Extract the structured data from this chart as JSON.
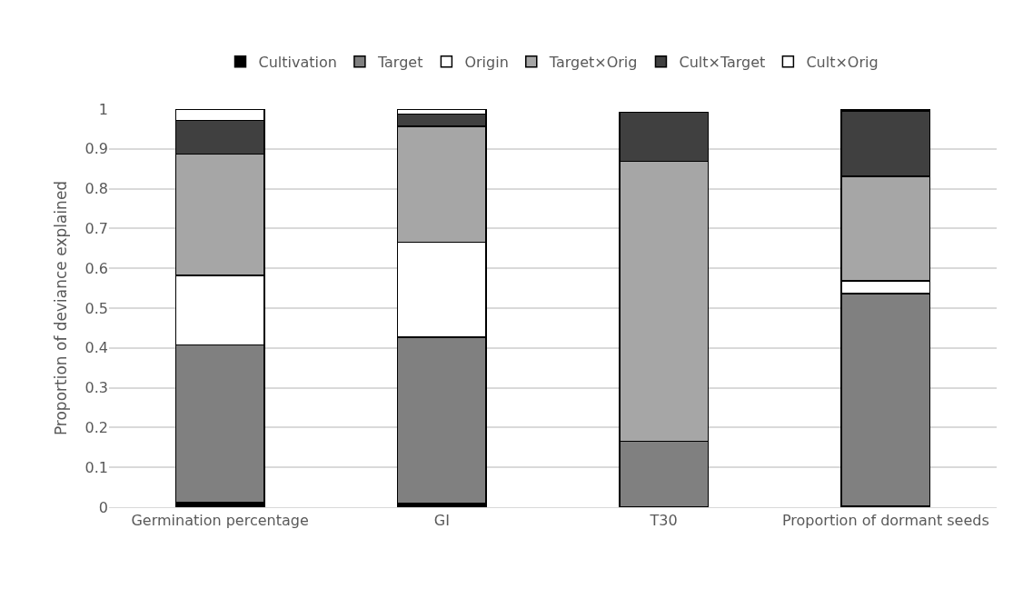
{
  "chart_data": {
    "type": "bar",
    "stacked": true,
    "ylabel": "Proportion of deviance explained",
    "categories": [
      "Germination percentage",
      "GI",
      "T30",
      "Proportion of dormant seeds"
    ],
    "series": [
      {
        "name": "Cultivation",
        "color": "#000000",
        "values": [
          0.012,
          0.009,
          null,
          0.002
        ]
      },
      {
        "name": "Target",
        "color": "#808080",
        "values": [
          0.395,
          0.418,
          0.166,
          0.534
        ]
      },
      {
        "name": "Origin",
        "color": "#ffffff",
        "values": [
          0.175,
          0.238,
          null,
          0.032
        ]
      },
      {
        "name": "Target×Orig",
        "color": "#a6a6a6",
        "values": [
          0.305,
          0.292,
          0.703,
          0.263
        ]
      },
      {
        "name": "Cult×Target",
        "color": "#404040",
        "values": [
          0.085,
          0.03,
          0.123,
          0.165
        ]
      },
      {
        "name": "Cult×Orig",
        "color": "#ffffff",
        "values": [
          0.028,
          0.013,
          null,
          0.004
        ]
      }
    ],
    "ylim": [
      0,
      1
    ],
    "yticks": [
      0,
      0.1,
      0.2,
      0.3,
      0.4,
      0.5,
      0.6,
      0.7,
      0.8,
      0.9,
      1
    ],
    "grid": "y",
    "legend": "top"
  }
}
